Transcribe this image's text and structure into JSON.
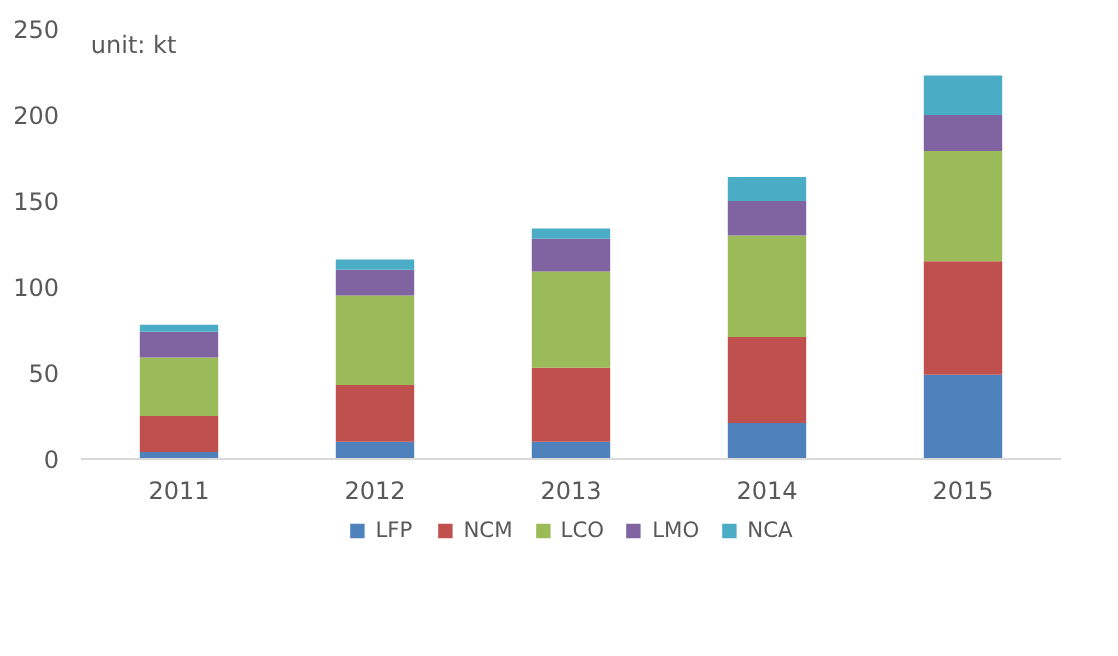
{
  "chart_data": {
    "type": "bar",
    "stacked": true,
    "categories": [
      "2011",
      "2012",
      "2013",
      "2014",
      "2015"
    ],
    "series": [
      {
        "name": "LFP",
        "color": "#4f81bd",
        "values": [
          4,
          10,
          10,
          21,
          49
        ]
      },
      {
        "name": "NCM",
        "color": "#c0504d",
        "values": [
          21,
          33,
          43,
          50,
          66
        ]
      },
      {
        "name": "LCO",
        "color": "#9bbb59",
        "values": [
          34,
          52,
          56,
          59,
          64
        ]
      },
      {
        "name": "LMO",
        "color": "#8064a2",
        "values": [
          15,
          15,
          19,
          20,
          21
        ]
      },
      {
        "name": "NCA",
        "color": "#4bacc6",
        "values": [
          4,
          6,
          6,
          14,
          23
        ]
      }
    ],
    "ylim": [
      0,
      250
    ],
    "yticks": [
      0,
      50,
      100,
      150,
      200,
      250
    ],
    "grid": false,
    "legend": "bottom",
    "annotations": [
      "unit: kt"
    ]
  }
}
